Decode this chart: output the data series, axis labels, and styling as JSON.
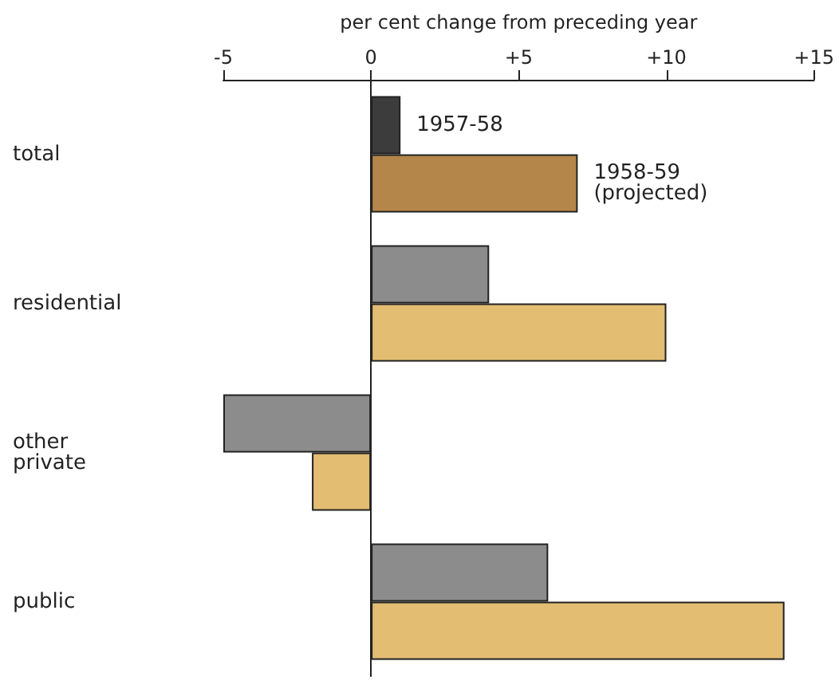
{
  "chart_data": {
    "type": "bar",
    "orientation": "horizontal",
    "xlabel": "per cent change from preceding year",
    "categories": [
      "total",
      "residential",
      "other private",
      "public"
    ],
    "series": [
      {
        "name": "1957-58",
        "colors": [
          "#3c3c3c",
          "#8c8c8c",
          "#8c8c8c",
          "#8c8c8c"
        ],
        "values": [
          1,
          4,
          -5,
          6
        ]
      },
      {
        "name": "1958-59 (projected)",
        "colors": [
          "#b4864a",
          "#e2bd72",
          "#e2bd72",
          "#e2bd72"
        ],
        "values": [
          7,
          10,
          -2,
          14
        ]
      }
    ],
    "xlim": [
      -5,
      15
    ],
    "xticks": [
      {
        "value": -5,
        "label": "-5"
      },
      {
        "value": 0,
        "label": "0"
      },
      {
        "value": 5,
        "label": "+5"
      },
      {
        "value": 10,
        "label": "+10"
      },
      {
        "value": 15,
        "label": "+15"
      }
    ],
    "legend": false
  }
}
